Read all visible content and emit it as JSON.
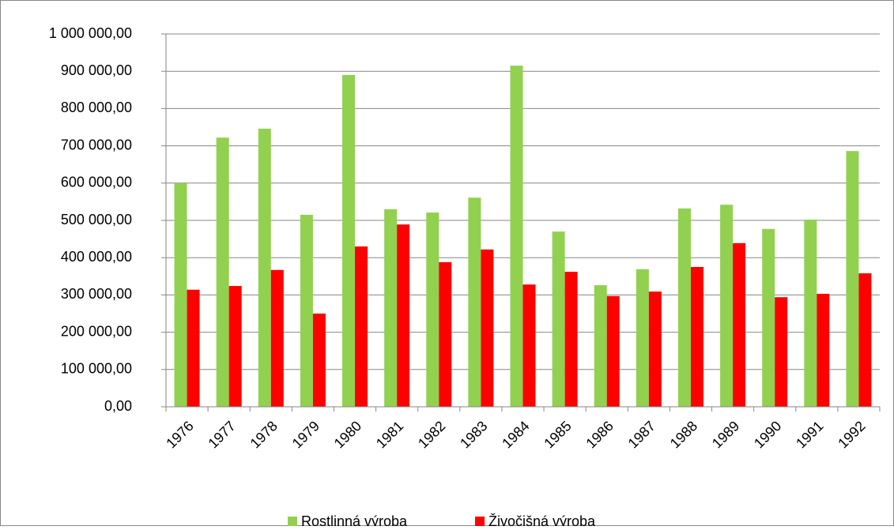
{
  "chart_data": {
    "type": "bar",
    "categories": [
      "1976",
      "1977",
      "1978",
      "1979",
      "1980",
      "1981",
      "1982",
      "1983",
      "1984",
      "1985",
      "1986",
      "1987",
      "1988",
      "1989",
      "1990",
      "1991",
      "1992"
    ],
    "series": [
      {
        "name": "Rostlinná výroba",
        "color": "#92d050",
        "values": [
          600000,
          722000,
          746000,
          515000,
          890000,
          530000,
          521000,
          561000,
          915000,
          470000,
          326000,
          369000,
          532000,
          542000,
          477000,
          502000,
          686000
        ]
      },
      {
        "name": "Živočišná výroba",
        "color": "#ff0000",
        "values": [
          314000,
          324000,
          367000,
          250000,
          430000,
          489000,
          388000,
          422000,
          328000,
          362000,
          297000,
          309000,
          375000,
          439000,
          294000,
          303000,
          358000
        ]
      }
    ],
    "ylim": [
      0,
      1000000
    ],
    "yticks": [
      {
        "value": 0,
        "label": "0,00"
      },
      {
        "value": 100000,
        "label": "100 000,00"
      },
      {
        "value": 200000,
        "label": "200 000,00"
      },
      {
        "value": 300000,
        "label": "300 000,00"
      },
      {
        "value": 400000,
        "label": "400 000,00"
      },
      {
        "value": 500000,
        "label": "500 000,00"
      },
      {
        "value": 600000,
        "label": "600 000,00"
      },
      {
        "value": 700000,
        "label": "700 000,00"
      },
      {
        "value": 800000,
        "label": "800 000,00"
      },
      {
        "value": 900000,
        "label": "900 000,00"
      },
      {
        "value": 1000000,
        "label": "1 000 000,00"
      }
    ],
    "grid": true,
    "legend": "bottom"
  }
}
